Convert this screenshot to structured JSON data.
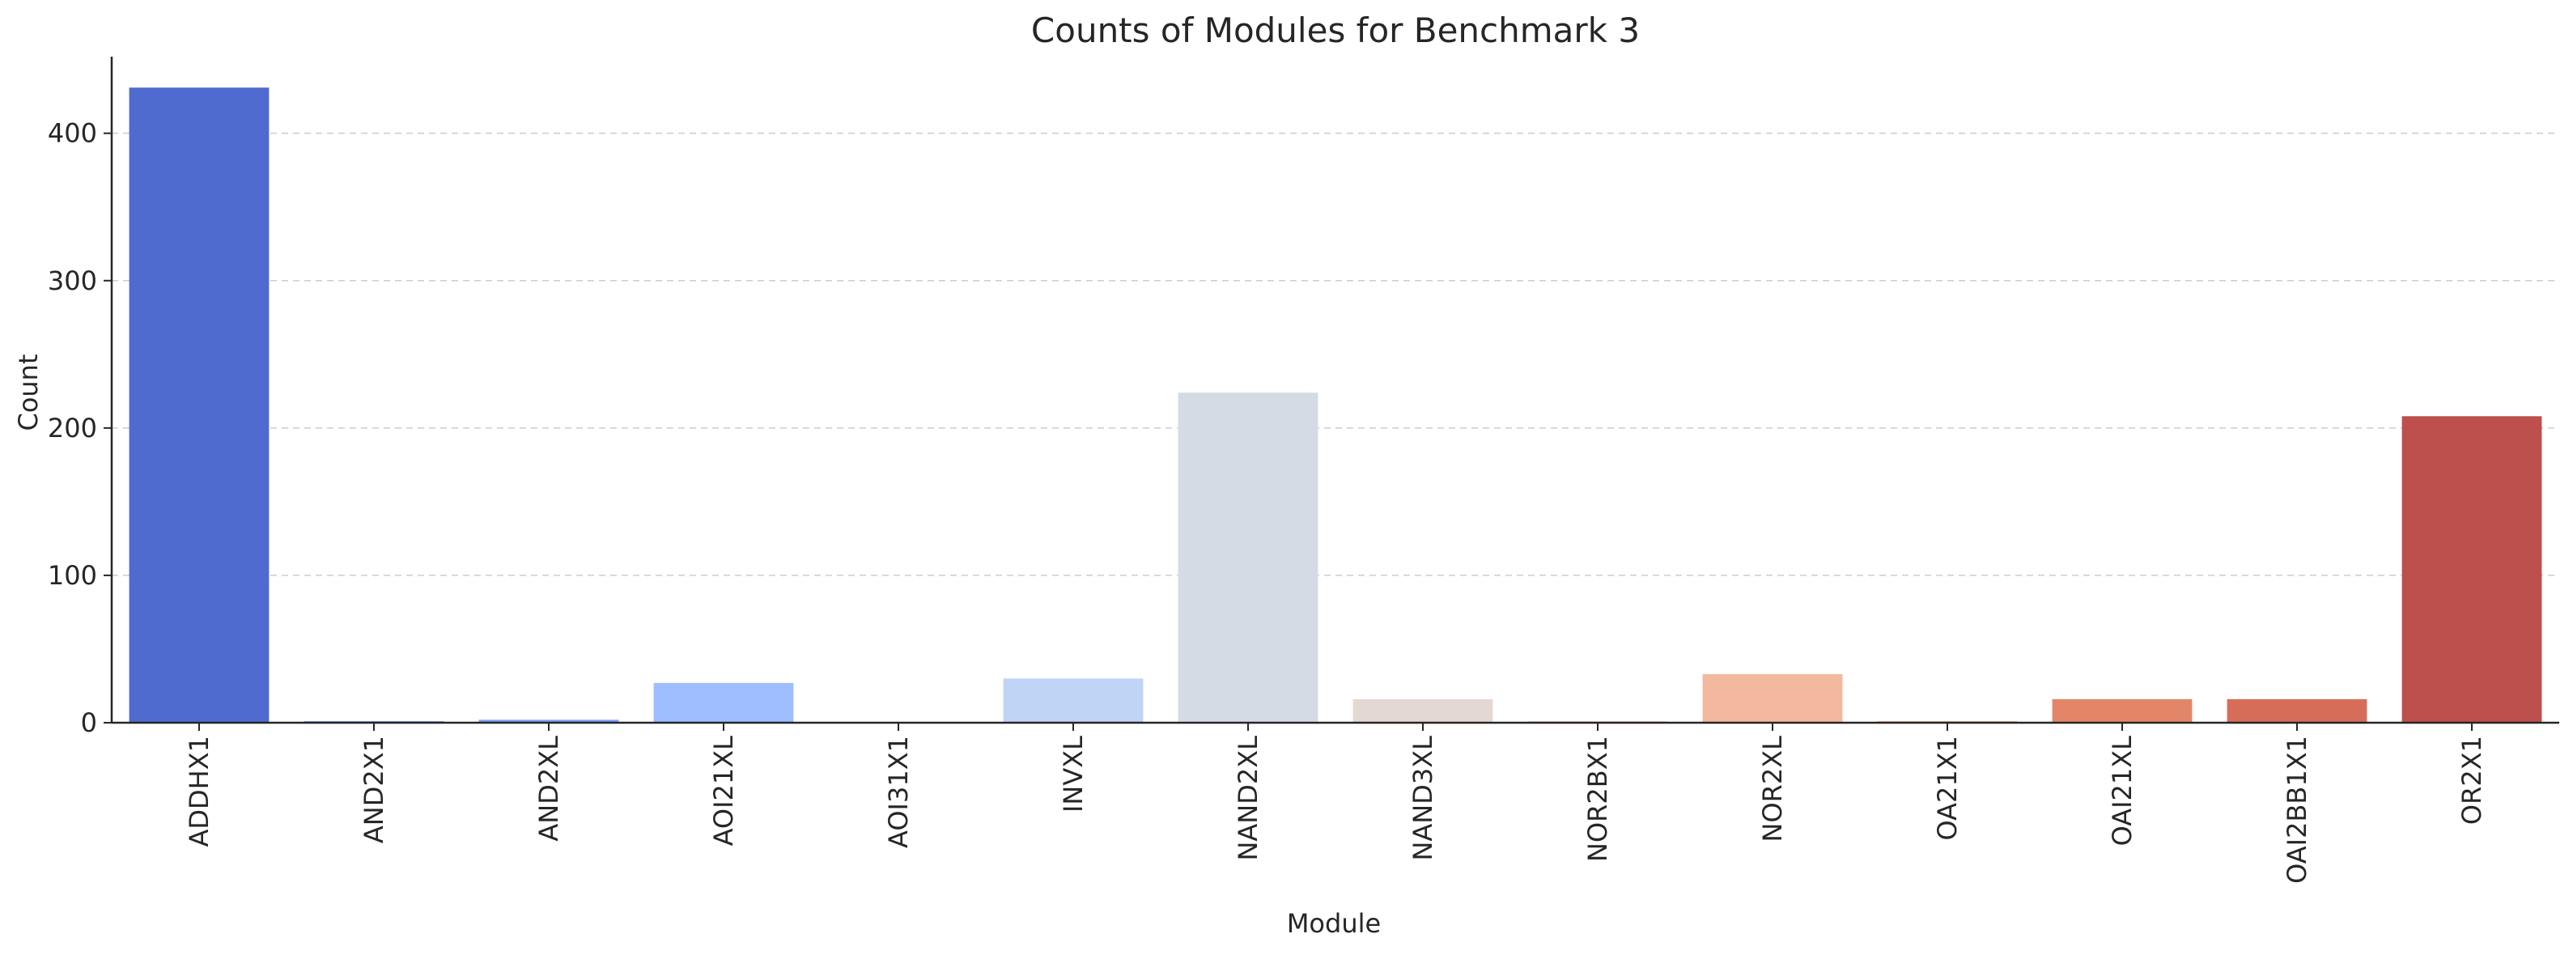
{
  "chart_data": {
    "type": "bar",
    "title": "Counts of Modules for Benchmark 3",
    "xlabel": "Module",
    "ylabel": "Count",
    "ylim": [
      0,
      452
    ],
    "yticks": [
      0,
      100,
      200,
      300,
      400
    ],
    "grid": "horizontal-dashed",
    "categories": [
      "ADDHX1",
      "AND2X1",
      "AND2XL",
      "AOI21XL",
      "AOI31X1",
      "INVXL",
      "NAND2XL",
      "NAND3XL",
      "NOR2BX1",
      "NOR2XL",
      "OA21X1",
      "OAI21XL",
      "OAI2BB1X1",
      "OR2X1"
    ],
    "values": [
      431,
      1,
      2,
      27,
      0,
      30,
      224,
      16,
      1,
      33,
      1,
      16,
      16,
      208
    ],
    "colors": [
      "#4f6bd0",
      "#6788ee",
      "#7b9ff9",
      "#9ebeff",
      "#b7cff9",
      "#c0d4f5",
      "#d5dbe5",
      "#e4d9d2",
      "#f1ccb8",
      "#f2b99e",
      "#ee9d80",
      "#e38668",
      "#d66d59",
      "#bd4f4d"
    ]
  }
}
